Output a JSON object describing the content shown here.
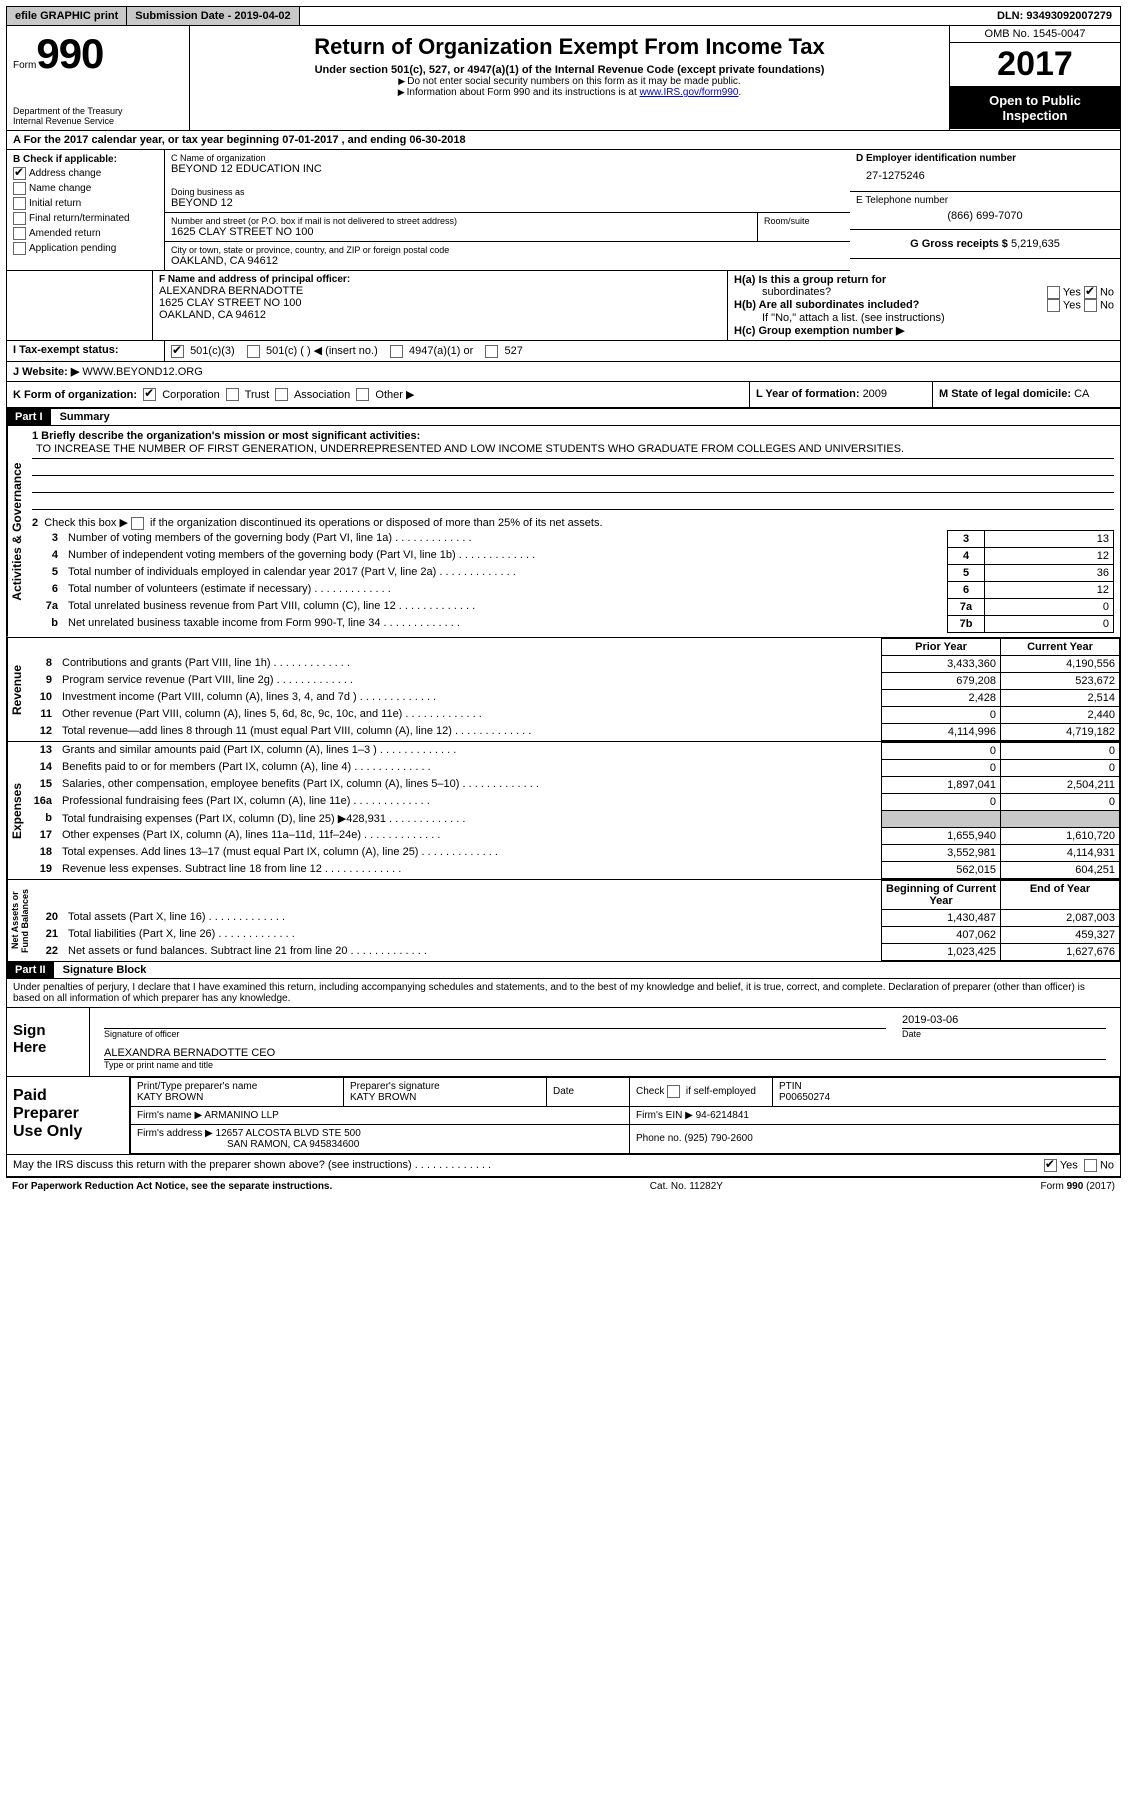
{
  "colors": {
    "shade": "#c8c8c8",
    "black": "#000000",
    "link": "#0000cc"
  },
  "topbar": {
    "efile": "efile GRAPHIC print",
    "subdate_label": "Submission Date - ",
    "subdate": "2019-04-02",
    "dln_label": "DLN: ",
    "dln": "93493092007279"
  },
  "header": {
    "form_small": "Form",
    "form_big": "990",
    "dept1": "Department of the Treasury",
    "dept2": "Internal Revenue Service",
    "title": "Return of Organization Exempt From Income Tax",
    "subtitle": "Under section 501(c), 527, or 4947(a)(1) of the Internal Revenue Code (except private foundations)",
    "note1": "Do not enter social security numbers on this form as it may be made public.",
    "note2_pre": "Information about Form 990 and its instructions is at ",
    "note2_link": "www.IRS.gov/form990",
    "omb": "OMB No. 1545-0047",
    "year": "2017",
    "open1": "Open to Public",
    "open2": "Inspection"
  },
  "rowA": {
    "pre": "A  For the 2017 calendar year, or tax year beginning ",
    "begin": "07-01-2017",
    "mid": " , and ending ",
    "end": "06-30-2018"
  },
  "B": {
    "label": "B Check if applicable:",
    "items": [
      "Address change",
      "Name change",
      "Initial return",
      "Final return/terminated",
      "Amended return",
      "Application pending"
    ],
    "checked": [
      true,
      false,
      false,
      false,
      false,
      false
    ]
  },
  "C": {
    "name_label": "C Name of organization",
    "name": "BEYOND 12 EDUCATION INC",
    "dba_label": "Doing business as",
    "dba": "BEYOND 12",
    "addr_label": "Number and street (or P.O. box if mail is not delivered to street address)",
    "room_label": "Room/suite",
    "addr": "1625 CLAY STREET NO 100",
    "city_label": "City or town, state or province, country, and ZIP or foreign postal code",
    "city": "OAKLAND, CA  94612"
  },
  "D": {
    "label": "D Employer identification number",
    "value": "27-1275246"
  },
  "E": {
    "label": "E Telephone number",
    "value": "(866) 699-7070"
  },
  "G": {
    "label": "G Gross receipts $ ",
    "value": "5,219,635"
  },
  "F": {
    "label": "F  Name and address of principal officer:",
    "name": "ALEXANDRA BERNADOTTE",
    "addr1": "1625 CLAY STREET NO 100",
    "addr2": "OAKLAND, CA  94612"
  },
  "H": {
    "a_label": "H(a)  Is this a group return for",
    "a_label2": "subordinates?",
    "b_label": "H(b)  Are all subordinates included?",
    "note": "If \"No,\" attach a list. (see instructions)",
    "c_label": "H(c)  Group exemption number ▶",
    "yes": "Yes",
    "no": "No"
  },
  "I": {
    "label": "I  Tax-exempt status:",
    "opts": [
      "501(c)(3)",
      "501(c) (  ) ◀ (insert no.)",
      "4947(a)(1) or",
      "527"
    ]
  },
  "J": {
    "label": "J  Website: ▶",
    "value": "WWW.BEYOND12.ORG"
  },
  "K": {
    "label": "K Form of organization:",
    "opts": [
      "Corporation",
      "Trust",
      "Association",
      "Other ▶"
    ]
  },
  "L": {
    "label": "L Year of formation: ",
    "value": "2009"
  },
  "M": {
    "label": "M State of legal domicile: ",
    "value": "CA"
  },
  "partI": {
    "bar": "Part I",
    "title": "Summary"
  },
  "summary": {
    "line1_label": "1  Briefly describe the organization's mission or most significant activities:",
    "mission": "TO INCREASE THE NUMBER OF FIRST GENERATION, UNDERREPRESENTED AND LOW INCOME STUDENTS WHO GRADUATE FROM COLLEGES AND UNIVERSITIES.",
    "line2": "2  Check this box ▶      if the organization discontinued its operations or disposed of more than 25% of its net assets.",
    "rows_top": [
      {
        "n": "3",
        "label": "Number of voting members of the governing body (Part VI, line 1a)",
        "box": "3",
        "val": "13"
      },
      {
        "n": "4",
        "label": "Number of independent voting members of the governing body (Part VI, line 1b)",
        "box": "4",
        "val": "12"
      },
      {
        "n": "5",
        "label": "Total number of individuals employed in calendar year 2017 (Part V, line 2a)",
        "box": "5",
        "val": "36"
      },
      {
        "n": "6",
        "label": "Total number of volunteers (estimate if necessary)",
        "box": "6",
        "val": "12"
      },
      {
        "n": "7a",
        "label": "Total unrelated business revenue from Part VIII, column (C), line 12",
        "box": "7a",
        "val": "0"
      },
      {
        "n": "b",
        "label": "Net unrelated business taxable income from Form 990-T, line 34",
        "box": "7b",
        "val": "0"
      }
    ],
    "col_headers": {
      "prior": "Prior Year",
      "current": "Current Year"
    },
    "revenue": [
      {
        "n": "8",
        "label": "Contributions and grants (Part VIII, line 1h)",
        "p": "3,433,360",
        "c": "4,190,556"
      },
      {
        "n": "9",
        "label": "Program service revenue (Part VIII, line 2g)",
        "p": "679,208",
        "c": "523,672"
      },
      {
        "n": "10",
        "label": "Investment income (Part VIII, column (A), lines 3, 4, and 7d )",
        "p": "2,428",
        "c": "2,514"
      },
      {
        "n": "11",
        "label": "Other revenue (Part VIII, column (A), lines 5, 6d, 8c, 9c, 10c, and 11e)",
        "p": "0",
        "c": "2,440"
      },
      {
        "n": "12",
        "label": "Total revenue—add lines 8 through 11 (must equal Part VIII, column (A), line 12)",
        "p": "4,114,996",
        "c": "4,719,182"
      }
    ],
    "expenses": [
      {
        "n": "13",
        "label": "Grants and similar amounts paid (Part IX, column (A), lines 1–3 )",
        "p": "0",
        "c": "0"
      },
      {
        "n": "14",
        "label": "Benefits paid to or for members (Part IX, column (A), line 4)",
        "p": "0",
        "c": "0"
      },
      {
        "n": "15",
        "label": "Salaries, other compensation, employee benefits (Part IX, column (A), lines 5–10)",
        "p": "1,897,041",
        "c": "2,504,211"
      },
      {
        "n": "16a",
        "label": "Professional fundraising fees (Part IX, column (A), line 11e)",
        "p": "0",
        "c": "0"
      },
      {
        "n": "b",
        "label": "Total fundraising expenses (Part IX, column (D), line 25) ▶428,931",
        "p": "",
        "c": "",
        "shade": true
      },
      {
        "n": "17",
        "label": "Other expenses (Part IX, column (A), lines 11a–11d, 11f–24e)",
        "p": "1,655,940",
        "c": "1,610,720"
      },
      {
        "n": "18",
        "label": "Total expenses. Add lines 13–17 (must equal Part IX, column (A), line 25)",
        "p": "3,552,981",
        "c": "4,114,931"
      },
      {
        "n": "19",
        "label": "Revenue less expenses. Subtract line 18 from line 12",
        "p": "562,015",
        "c": "604,251"
      }
    ],
    "net_headers": {
      "begin": "Beginning of Current Year",
      "end": "End of Year"
    },
    "net": [
      {
        "n": "20",
        "label": "Total assets (Part X, line 16)",
        "p": "1,430,487",
        "c": "2,087,003"
      },
      {
        "n": "21",
        "label": "Total liabilities (Part X, line 26)",
        "p": "407,062",
        "c": "459,327"
      },
      {
        "n": "22",
        "label": "Net assets or fund balances. Subtract line 21 from line 20",
        "p": "1,023,425",
        "c": "1,627,676"
      }
    ],
    "side_labels": {
      "actgov": "Activities & Governance",
      "rev": "Revenue",
      "exp": "Expenses",
      "net": "Net Assets or\nFund Balances"
    }
  },
  "partII": {
    "bar": "Part II",
    "title": "Signature Block",
    "decl": "Under penalties of perjury, I declare that I have examined this return, including accompanying schedules and statements, and to the best of my knowledge and belief, it is true, correct, and complete. Declaration of preparer (other than officer) is based on all information of which preparer has any knowledge."
  },
  "sign": {
    "left": "Sign\nHere",
    "sig_officer": "Signature of officer",
    "date_label": "Date",
    "date": "2019-03-06",
    "name": "ALEXANDRA BERNADOTTE CEO",
    "name_label": "Type or print name and title"
  },
  "prep": {
    "left": "Paid\nPreparer\nUse Only",
    "pn_label": "Print/Type preparer's name",
    "pn": "KATY BROWN",
    "ps_label": "Preparer's signature",
    "ps": "KATY BROWN",
    "date_label": "Date",
    "check_label": "Check      if self-employed",
    "ptin_label": "PTIN",
    "ptin": "P00650274",
    "firm_label": "Firm's name   ▶ ",
    "firm": "ARMANINO LLP",
    "ein_label": "Firm's EIN ▶ ",
    "ein": "94-6214841",
    "addr_label": "Firm's address ▶ ",
    "addr1": "12657 ALCOSTA BLVD STE 500",
    "addr2": "SAN RAMON, CA  945834600",
    "phone_label": "Phone no. ",
    "phone": "(925) 790-2600"
  },
  "discuss": {
    "q": "May the IRS discuss this return with the preparer shown above? (see instructions)",
    "yes": "Yes",
    "no": "No"
  },
  "footer": {
    "left": "For Paperwork Reduction Act Notice, see the separate instructions.",
    "mid": "Cat. No. 11282Y",
    "right_pre": "Form ",
    "right_b": "990",
    "right_post": " (2017)"
  }
}
